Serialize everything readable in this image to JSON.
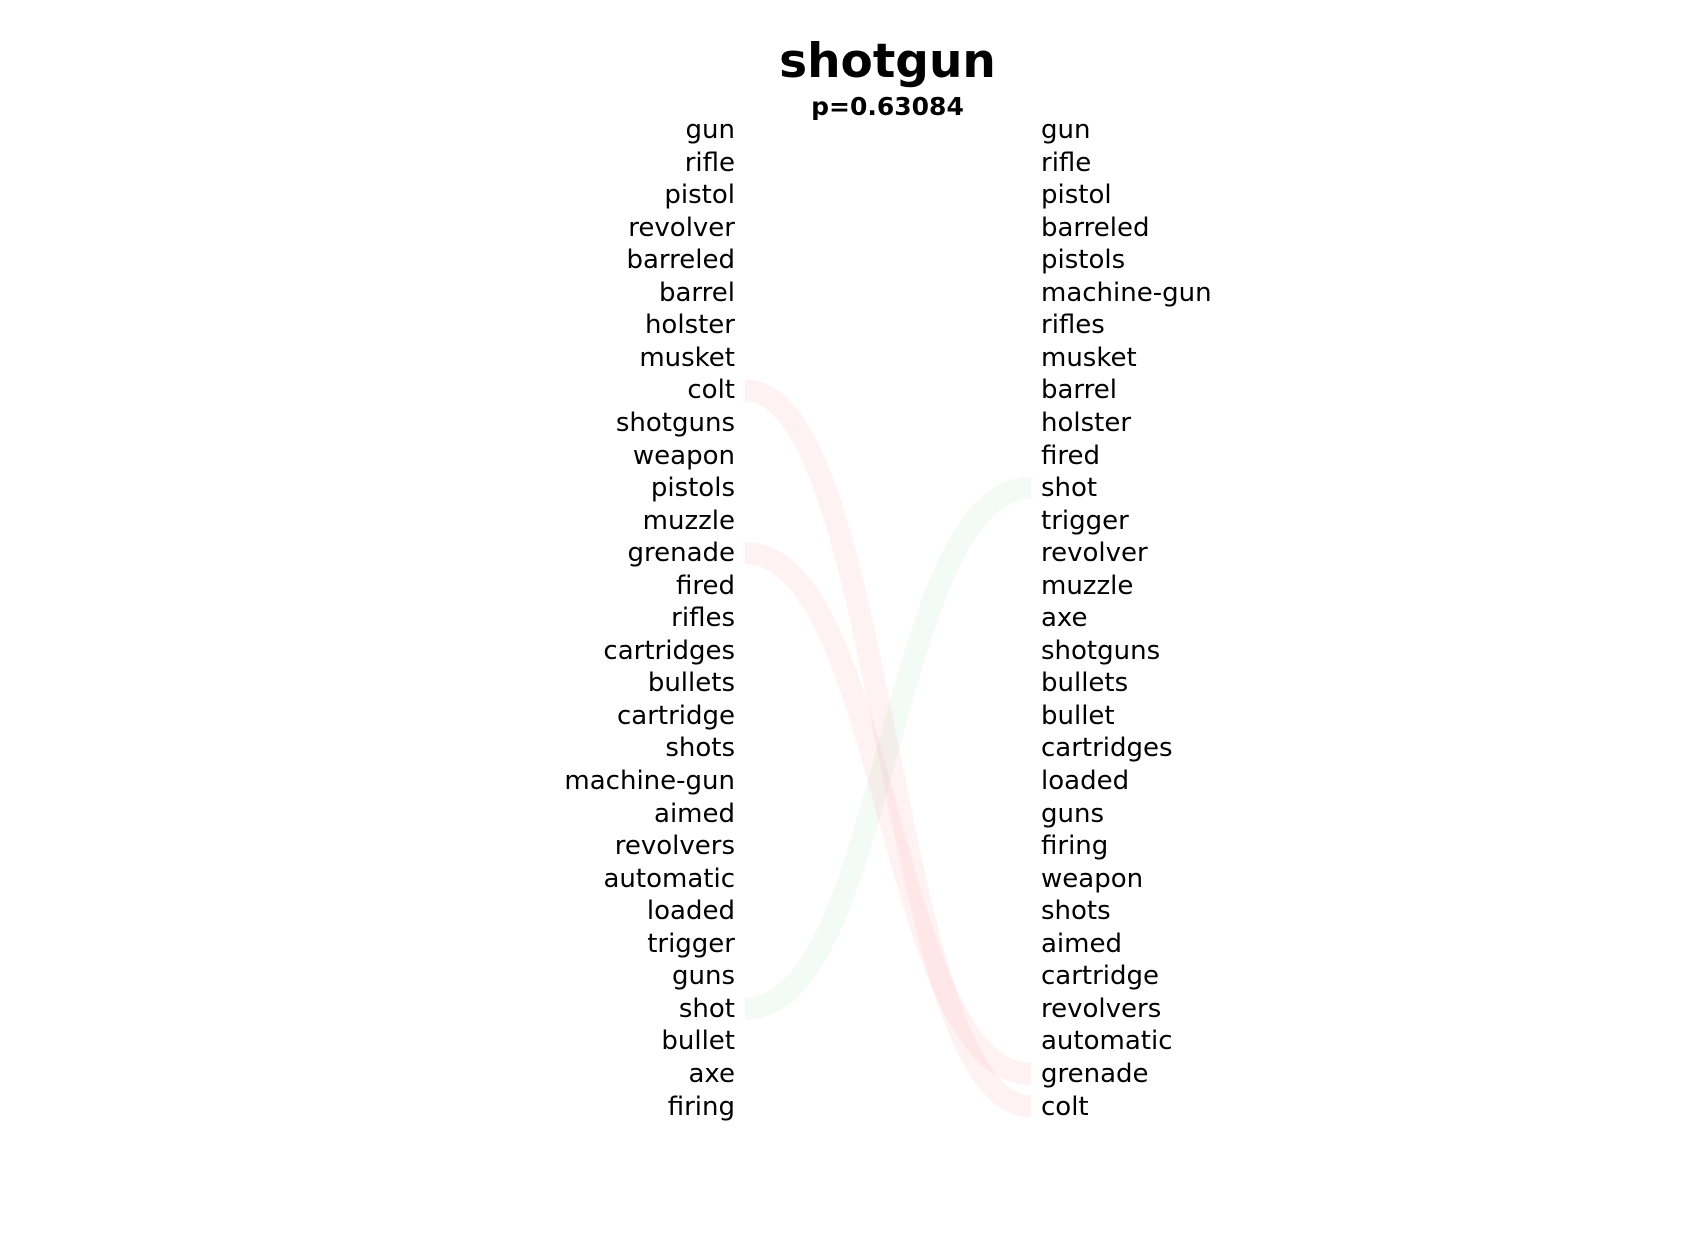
{
  "title": "shotgun",
  "subtitle": "p=0.63084",
  "left_words": [
    "gun",
    "rifle",
    "pistol",
    "revolver",
    "barreled",
    "barrel",
    "holster",
    "musket",
    "colt",
    "shotguns",
    "weapon",
    "pistols",
    "muzzle",
    "grenade",
    "fired",
    "rifles",
    "cartridges",
    "bullets",
    "cartridge",
    "shots",
    "machine-gun",
    "aimed",
    "revolvers",
    "automatic",
    "loaded",
    "trigger",
    "guns",
    "shot",
    "bullet",
    "axe",
    "firing"
  ],
  "right_words": [
    "gun",
    "rifle",
    "pistol",
    "barreled",
    "pistols",
    "machine-gun",
    "rifles",
    "musket",
    "barrel",
    "holster",
    "fired",
    "shot",
    "trigger",
    "revolver",
    "muzzle",
    "axe",
    "shotguns",
    "bullets",
    "bullet",
    "cartridges",
    "loaded",
    "guns",
    "firing",
    "weapon",
    "shots",
    "aimed",
    "cartridge",
    "revolvers",
    "automatic",
    "grenade",
    "colt"
  ],
  "links": [
    {
      "from": "colt",
      "from_rank": 9,
      "to": "colt",
      "to_rank": 31,
      "direction": "down",
      "color": "#ff9aa2"
    },
    {
      "from": "grenade",
      "from_rank": 14,
      "to": "grenade",
      "to_rank": 30,
      "direction": "down",
      "color": "#ff9aa2"
    },
    {
      "from": "shot",
      "from_rank": 28,
      "to": "shot",
      "to_rank": 12,
      "direction": "up",
      "color": "#a8d8b0"
    }
  ],
  "colors": {
    "down": "#ff9aa2",
    "up": "#a8d8b0"
  }
}
